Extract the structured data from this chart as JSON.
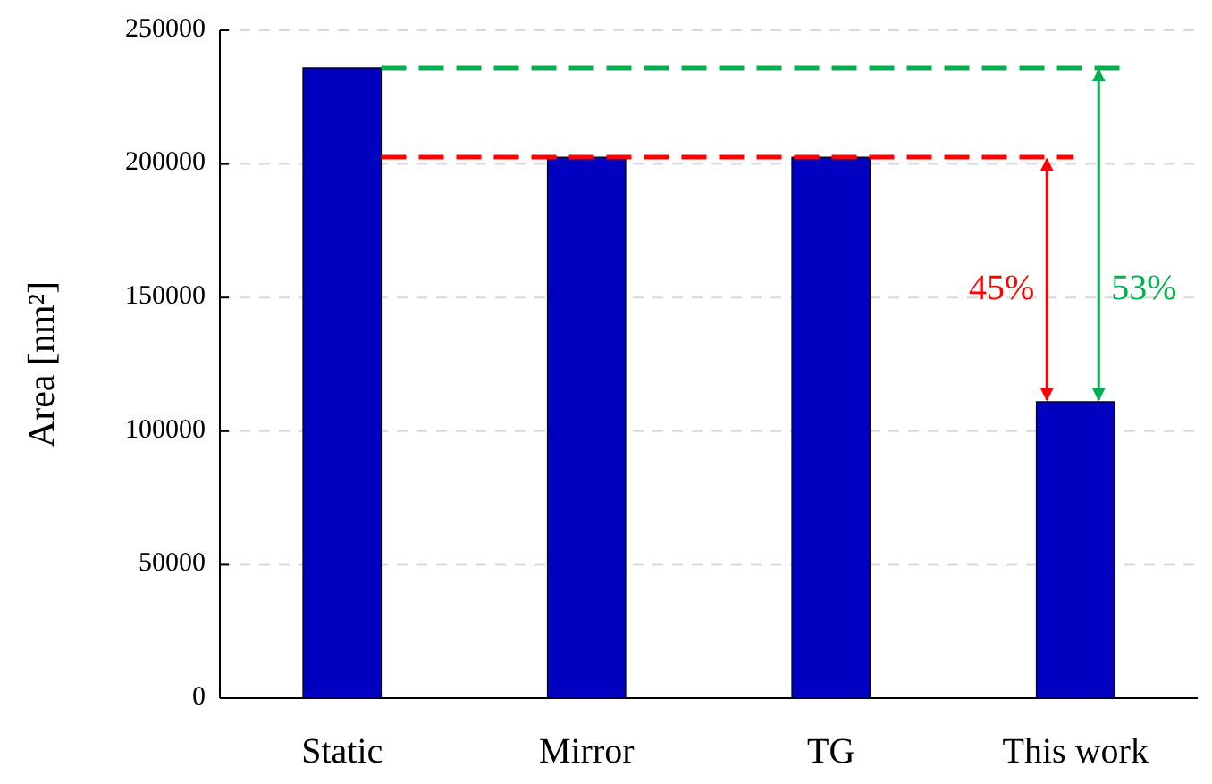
{
  "chart_data": {
    "type": "bar",
    "ylabel": "Area [nm²]",
    "categories": [
      "Static",
      "Mirror",
      "TG",
      "This work"
    ],
    "values": [
      236000,
      202500,
      202500,
      111000
    ],
    "color": "#0000c0",
    "ylim": [
      0,
      250000
    ],
    "yticks": [
      0,
      50000,
      100000,
      150000,
      200000,
      250000
    ],
    "grid": "y",
    "ref_lines": [
      {
        "axis": "y",
        "value": 236000,
        "color": "#00b050",
        "line_style": "dashed"
      },
      {
        "axis": "y",
        "value": 202500,
        "color": "#ff0000",
        "line_style": "dashed"
      }
    ],
    "annotations": [
      "53%",
      "45%"
    ]
  }
}
